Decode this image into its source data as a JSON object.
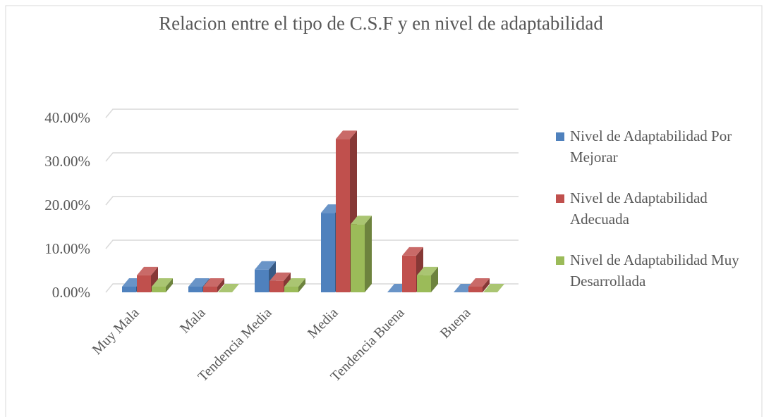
{
  "chart_data": {
    "type": "bar3d",
    "title": "Relacion entre el tipo de C.S.F y en nivel de adaptabilidad",
    "categories": [
      "Muy Mala",
      "Mala",
      "Tendencia Media",
      "Media",
      "Tendencia Buena",
      "Buena"
    ],
    "series": [
      {
        "name": "Nivel de Adaptabilidad Por Mejorar",
        "color": "#4f81bd",
        "values": [
          1.3,
          1.3,
          5.2,
          18.2,
          0,
          0
        ]
      },
      {
        "name": "Nivel de Adaptabilidad Adecuada",
        "color": "#c0504d",
        "values": [
          3.9,
          1.3,
          2.6,
          35.1,
          8.4,
          1.3
        ]
      },
      {
        "name": "Nivel de Adaptabilidad Muy Desarrollada",
        "color": "#9bbb59",
        "values": [
          1.3,
          0,
          1.3,
          15.6,
          3.9,
          0
        ]
      }
    ],
    "ylim": [
      0,
      40
    ],
    "yticks": [
      {
        "value": 0,
        "label": "0.00%"
      },
      {
        "value": 10,
        "label": "10.00%"
      },
      {
        "value": 20,
        "label": "20.00%"
      },
      {
        "value": 30,
        "label": "30.00%"
      },
      {
        "value": 40,
        "label": "40.00%"
      }
    ],
    "grid": true,
    "legend": "right"
  }
}
